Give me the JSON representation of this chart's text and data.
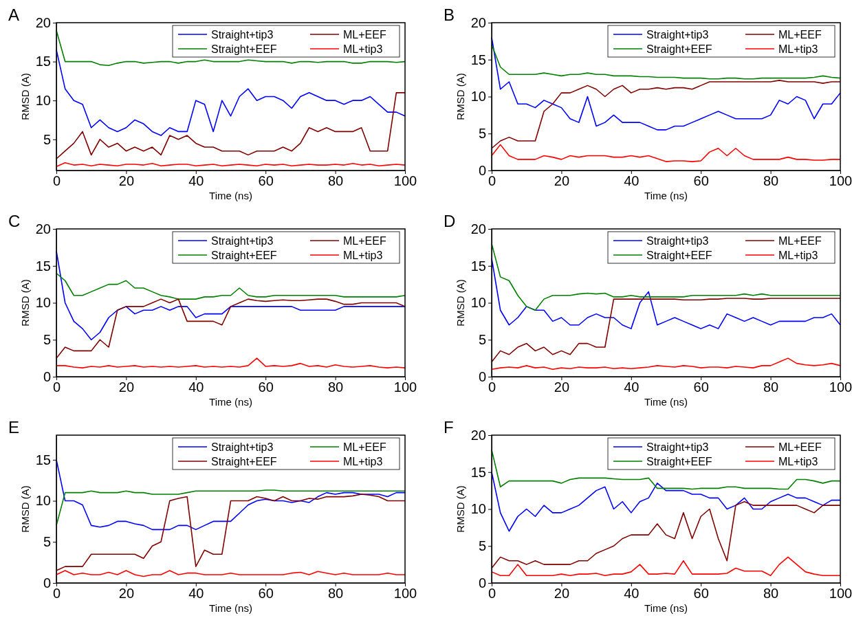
{
  "chart_data": [
    {
      "type": "line",
      "title": "A",
      "xlabel": "Time (ns)",
      "ylabel": "RMSD (A)",
      "xlim": [
        0,
        100
      ],
      "xticks": [
        0,
        20,
        40,
        60,
        80,
        100
      ],
      "ylim": [
        1,
        20
      ],
      "yticks": [
        5,
        10,
        15,
        20
      ],
      "legend": "top right",
      "x": [
        0,
        2.5,
        5,
        7.5,
        10,
        12.5,
        15,
        17.5,
        20,
        22.5,
        25,
        27.5,
        30,
        32.5,
        35,
        37.5,
        40,
        42.5,
        45,
        47.5,
        50,
        52.5,
        55,
        57.5,
        60,
        62.5,
        65,
        67.5,
        70,
        72.5,
        75,
        77.5,
        80,
        82.5,
        85,
        87.5,
        90,
        92.5,
        95,
        97.5,
        100
      ],
      "series": [
        {
          "name": "Straight+tip3",
          "color": "#0000ff",
          "values": [
            16.5,
            11.5,
            10,
            9.5,
            6.5,
            7.5,
            6.5,
            6,
            6.5,
            7.5,
            7,
            6,
            5.5,
            6.5,
            6,
            6,
            10,
            9.5,
            6,
            10,
            8,
            10.5,
            11.5,
            10,
            10.5,
            10.5,
            10,
            9,
            10.5,
            11,
            10.5,
            10,
            10,
            9.5,
            10,
            10,
            10.5,
            9.5,
            8.5,
            8.5,
            8
          ]
        },
        {
          "name": "Straight+EEF",
          "color": "#008000",
          "values": [
            19,
            15,
            15,
            15,
            15,
            14.6,
            14.5,
            14.8,
            15,
            15,
            14.8,
            14.9,
            15,
            15,
            14.8,
            15,
            15,
            15.2,
            15,
            15,
            15,
            15,
            15.2,
            15.1,
            15,
            15,
            15,
            14.8,
            15,
            15,
            14.9,
            15,
            15,
            15,
            14.8,
            14.8,
            15,
            15,
            15,
            14.9,
            15
          ]
        },
        {
          "name": "ML+EEF",
          "color": "#800000",
          "values": [
            2.5,
            3.5,
            4.5,
            6,
            3,
            5,
            4,
            4.5,
            3.5,
            4,
            3.5,
            4,
            3,
            5.5,
            5,
            5.5,
            4.5,
            4,
            4,
            3.5,
            3.5,
            3.5,
            3,
            3.5,
            3.5,
            3.5,
            4,
            3.5,
            4.5,
            6.5,
            6,
            6.5,
            6,
            6,
            6,
            6.5,
            3.5,
            3.5,
            3.5,
            11,
            11
          ]
        },
        {
          "name": "ML+tip3",
          "color": "#ff0000",
          "values": [
            1.5,
            2,
            1.7,
            1.8,
            1.6,
            1.8,
            1.7,
            1.6,
            1.8,
            1.8,
            1.7,
            1.9,
            1.6,
            1.7,
            1.8,
            1.8,
            1.6,
            1.7,
            1.8,
            1.6,
            1.7,
            1.8,
            1.7,
            1.6,
            1.8,
            1.7,
            1.8,
            1.6,
            1.7,
            1.8,
            1.7,
            1.7,
            1.8,
            1.7,
            1.9,
            1.7,
            1.8,
            1.6,
            1.7,
            1.8,
            1.7
          ]
        }
      ]
    },
    {
      "type": "line",
      "title": "B",
      "xlabel": "Time (ns)",
      "ylabel": "RMSD (A)",
      "xlim": [
        0,
        100
      ],
      "xticks": [
        0,
        20,
        40,
        60,
        80,
        100
      ],
      "ylim": [
        0,
        20
      ],
      "yticks": [
        0,
        5,
        10,
        15,
        20
      ],
      "legend": "top right",
      "x": [
        0,
        2.5,
        5,
        7.5,
        10,
        12.5,
        15,
        17.5,
        20,
        22.5,
        25,
        27.5,
        30,
        32.5,
        35,
        37.5,
        40,
        42.5,
        45,
        47.5,
        50,
        52.5,
        55,
        57.5,
        60,
        62.5,
        65,
        67.5,
        70,
        72.5,
        75,
        77.5,
        80,
        82.5,
        85,
        87.5,
        90,
        92.5,
        95,
        97.5,
        100
      ],
      "series": [
        {
          "name": "Straight+tip3",
          "color": "#0000ff",
          "values": [
            18,
            11,
            12,
            9,
            9,
            8.5,
            9.5,
            9,
            8.5,
            7,
            6.5,
            10,
            6,
            6.5,
            7.5,
            6.5,
            6.5,
            6.5,
            6,
            5.5,
            5.5,
            6,
            6,
            6.5,
            7,
            7.5,
            8,
            7.5,
            7,
            7,
            7,
            7,
            7.5,
            9.5,
            9,
            10,
            9.5,
            7,
            9,
            9,
            10.5
          ]
        },
        {
          "name": "Straight+EEF",
          "color": "#008000",
          "values": [
            17,
            14,
            13,
            13,
            13,
            13,
            13.2,
            13,
            12.8,
            13,
            13,
            13.2,
            13,
            13,
            12.8,
            12.8,
            12.8,
            12.7,
            12.7,
            12.6,
            12.6,
            12.6,
            12.5,
            12.5,
            12.5,
            12.4,
            12.4,
            12.5,
            12.5,
            12.4,
            12.4,
            12.5,
            12.5,
            12.5,
            12.5,
            12.5,
            12.5,
            12.6,
            12.8,
            12.6,
            12.5
          ]
        },
        {
          "name": "ML+EEF",
          "color": "#800000",
          "values": [
            3,
            4,
            4.5,
            4,
            4,
            4,
            8,
            9,
            10.5,
            10.5,
            11,
            11.5,
            11,
            10,
            11,
            11.5,
            10.5,
            11,
            11,
            11.2,
            11,
            11.2,
            11.2,
            11,
            11.5,
            12,
            12,
            12,
            12,
            12,
            12,
            12,
            12,
            12.2,
            12,
            12,
            12,
            12,
            11.8,
            12,
            12
          ]
        },
        {
          "name": "ML+tip3",
          "color": "#ff0000",
          "values": [
            2,
            3.5,
            2,
            1.5,
            1.5,
            1.5,
            2,
            1.8,
            1.5,
            2,
            1.8,
            2,
            2,
            2,
            1.8,
            1.8,
            2,
            1.8,
            2,
            1.6,
            1.2,
            1.3,
            1.3,
            1.2,
            1.3,
            2.5,
            3,
            2,
            3,
            2,
            1.5,
            1.5,
            1.5,
            1.5,
            1.8,
            1.5,
            1.5,
            1.4,
            1.4,
            1.5,
            1.5
          ]
        }
      ]
    },
    {
      "type": "line",
      "title": "C",
      "xlabel": "Time (ns)",
      "ylabel": "RMSD (A)",
      "xlim": [
        0,
        100
      ],
      "xticks": [
        0,
        20,
        40,
        60,
        80,
        100
      ],
      "ylim": [
        0,
        20
      ],
      "yticks": [
        0,
        5,
        10,
        15,
        20
      ],
      "legend": "top right",
      "x": [
        0,
        2.5,
        5,
        7.5,
        10,
        12.5,
        15,
        17.5,
        20,
        22.5,
        25,
        27.5,
        30,
        32.5,
        35,
        37.5,
        40,
        42.5,
        45,
        47.5,
        50,
        52.5,
        55,
        57.5,
        60,
        62.5,
        65,
        67.5,
        70,
        72.5,
        75,
        77.5,
        80,
        82.5,
        85,
        87.5,
        90,
        92.5,
        95,
        97.5,
        100
      ],
      "series": [
        {
          "name": "Straight+tip3",
          "color": "#0000ff",
          "values": [
            17,
            10,
            7.5,
            6.5,
            5,
            6,
            8,
            9,
            9.5,
            8.5,
            9,
            9,
            9.5,
            9,
            9.5,
            9.5,
            8,
            8.5,
            8.5,
            8.5,
            9.5,
            9.5,
            9.5,
            9.5,
            9.5,
            9.5,
            9.5,
            9.5,
            9,
            9,
            9,
            9,
            9,
            9.5,
            9.5,
            9.5,
            9.5,
            9.5,
            9.5,
            9.5,
            9.5
          ]
        },
        {
          "name": "Straight+EEF",
          "color": "#008000",
          "values": [
            14,
            13,
            11,
            11,
            11.5,
            12,
            12.5,
            12.5,
            13,
            12,
            12,
            11.5,
            11,
            10.8,
            10.5,
            10.5,
            10.5,
            10.8,
            10.8,
            11,
            11,
            12,
            11,
            10.8,
            10.8,
            11,
            11,
            11,
            11,
            11,
            11,
            11,
            11,
            10.8,
            10.8,
            10.8,
            10.8,
            10.8,
            10.8,
            10.8,
            11
          ]
        },
        {
          "name": "ML+EEF",
          "color": "#800000",
          "values": [
            2.5,
            4,
            3.5,
            3.5,
            3.5,
            5,
            4,
            9,
            9.5,
            9.5,
            9.5,
            10,
            10.5,
            10,
            10.5,
            7.5,
            7.5,
            7.5,
            7.5,
            7,
            9.5,
            10,
            10.5,
            10.3,
            10.2,
            10.3,
            10.4,
            10.3,
            10.3,
            10.4,
            10.5,
            10.5,
            10.2,
            9.8,
            9.8,
            10,
            10,
            10,
            10,
            10,
            9.5
          ]
        },
        {
          "name": "ML+tip3",
          "color": "#ff0000",
          "values": [
            1.5,
            1.5,
            1.3,
            1.2,
            1.4,
            1.3,
            1.5,
            1.3,
            1.4,
            1.5,
            1.3,
            1.4,
            1.3,
            1.4,
            1.3,
            1.4,
            1.5,
            1.3,
            1.4,
            1.3,
            1.4,
            1.3,
            1.5,
            2.5,
            1.4,
            1.5,
            1.4,
            1.5,
            1.8,
            1.4,
            1.5,
            1.3,
            1.6,
            1.4,
            1.3,
            1.4,
            1.5,
            1.3,
            1.2,
            1.3,
            1.2
          ]
        }
      ]
    },
    {
      "type": "line",
      "title": "D",
      "xlabel": "Time (ns)",
      "ylabel": "RMSD (A)",
      "xlim": [
        0,
        100
      ],
      "xticks": [
        0,
        20,
        40,
        60,
        80,
        100
      ],
      "ylim": [
        0,
        20
      ],
      "yticks": [
        0,
        5,
        10,
        15,
        20
      ],
      "legend": "top right",
      "x": [
        0,
        2.5,
        5,
        7.5,
        10,
        12.5,
        15,
        17.5,
        20,
        22.5,
        25,
        27.5,
        30,
        32.5,
        35,
        37.5,
        40,
        42.5,
        45,
        47.5,
        50,
        52.5,
        55,
        57.5,
        60,
        62.5,
        65,
        67.5,
        70,
        72.5,
        75,
        77.5,
        80,
        82.5,
        85,
        87.5,
        90,
        92.5,
        95,
        97.5,
        100
      ],
      "series": [
        {
          "name": "Straight+tip3",
          "color": "#0000ff",
          "values": [
            16,
            9,
            7,
            8,
            9.5,
            9,
            9,
            7.5,
            8,
            7,
            7,
            8,
            8.5,
            8,
            8,
            7,
            6.5,
            10,
            11.5,
            7,
            7.5,
            8,
            7.5,
            7,
            6.5,
            7,
            6.5,
            8.5,
            8,
            7.5,
            8,
            7.5,
            7,
            7.5,
            7.5,
            7.5,
            7.5,
            8,
            8,
            8.5,
            7
          ]
        },
        {
          "name": "Straight+EEF",
          "color": "#008000",
          "values": [
            18,
            13.5,
            13,
            11,
            9.5,
            9,
            10.5,
            11,
            11,
            11,
            11.2,
            11.3,
            11.2,
            11.3,
            10.8,
            10.8,
            11,
            10.8,
            10.8,
            10.8,
            10.8,
            10.8,
            10.8,
            11,
            11,
            11,
            11,
            11,
            11,
            11.2,
            11,
            11.2,
            11,
            11,
            11,
            11,
            11,
            11,
            11,
            11,
            11
          ]
        },
        {
          "name": "ML+EEF",
          "color": "#800000",
          "values": [
            2,
            3.5,
            3,
            4,
            4.5,
            3.5,
            4,
            3,
            3.5,
            3,
            4.5,
            4.5,
            4,
            4,
            10.5,
            10.5,
            10.5,
            10.5,
            10.5,
            10.5,
            10.5,
            10.5,
            10.4,
            10.4,
            10.4,
            10.5,
            10.5,
            10.6,
            10.6,
            10.6,
            10.5,
            10.5,
            10.6,
            10.6,
            10.6,
            10.6,
            10.6,
            10.6,
            10.6,
            10.6,
            10.6
          ]
        },
        {
          "name": "ML+tip3",
          "color": "#ff0000",
          "values": [
            1,
            1.2,
            1.3,
            1.2,
            1.5,
            1.2,
            1.3,
            1,
            1.2,
            1.1,
            1.3,
            1.2,
            1.2,
            1.3,
            1.1,
            1.2,
            1.1,
            1.2,
            1.3,
            1.5,
            1.4,
            1.3,
            1.5,
            1.4,
            1.2,
            1.3,
            1.3,
            1.2,
            1.4,
            1.3,
            1.2,
            1.5,
            1.5,
            2,
            2.5,
            1.8,
            1.6,
            1.5,
            1.6,
            1.8,
            1.5
          ]
        }
      ]
    },
    {
      "type": "line",
      "title": "E",
      "xlabel": "Time (ns)",
      "ylabel": "RMSD (A)",
      "xlim": [
        0,
        100
      ],
      "xticks": [
        0,
        20,
        40,
        60,
        80,
        100
      ],
      "ylim": [
        0,
        18
      ],
      "yticks": [
        0,
        5,
        10,
        15
      ],
      "legend": "top right",
      "x": [
        0,
        2.5,
        5,
        7.5,
        10,
        12.5,
        15,
        17.5,
        20,
        22.5,
        25,
        27.5,
        30,
        32.5,
        35,
        37.5,
        40,
        42.5,
        45,
        47.5,
        50,
        52.5,
        55,
        57.5,
        60,
        62.5,
        65,
        67.5,
        70,
        72.5,
        75,
        77.5,
        80,
        82.5,
        85,
        87.5,
        90,
        92.5,
        95,
        97.5,
        100
      ],
      "series": [
        {
          "name": "Straight+tip3",
          "color": "#0000ff",
          "values": [
            15,
            10,
            10,
            9.5,
            7,
            6.8,
            7,
            7.5,
            7.5,
            7.2,
            7,
            6.5,
            6.5,
            6.5,
            7,
            7,
            6.5,
            7,
            7.5,
            7.5,
            7.5,
            8.5,
            9.5,
            10,
            10.2,
            10,
            10,
            9.8,
            10,
            9.8,
            10.5,
            11,
            10.8,
            11,
            11,
            10.8,
            10.8,
            10.8,
            10.5,
            11,
            11
          ]
        },
        {
          "name": "Straight+EEF",
          "color": "#800000",
          "values": [
            1.5,
            2,
            2,
            2,
            3.5,
            3.5,
            3.5,
            3.5,
            3.5,
            3.5,
            3,
            4.5,
            5,
            10,
            10.3,
            10.5,
            2,
            4,
            3.5,
            3.5,
            10,
            10,
            10,
            10.5,
            10.3,
            10,
            10.5,
            10,
            10,
            10.3,
            10.2,
            10.5,
            10.5,
            10.5,
            10.6,
            10.8,
            10.7,
            10.5,
            10,
            10,
            10
          ]
        },
        {
          "name": "ML+EEF",
          "color": "#008000",
          "values": [
            7,
            11,
            11,
            11,
            11.2,
            11,
            11,
            11,
            11.2,
            11,
            11,
            10.8,
            10.8,
            10.8,
            10.8,
            11,
            11.2,
            11.2,
            11.2,
            11.2,
            11.2,
            11.2,
            11.2,
            11.2,
            11.3,
            11.3,
            11.2,
            11.2,
            11.2,
            11.2,
            11.2,
            11.2,
            11.2,
            11.2,
            11.2,
            11.2,
            11.2,
            11.2,
            11.2,
            11.2,
            11.2
          ]
        },
        {
          "name": "ML+tip3",
          "color": "#ff0000",
          "values": [
            1,
            1.5,
            1,
            1.2,
            1,
            1,
            1.3,
            1,
            1.5,
            1,
            0.8,
            1,
            1,
            1.5,
            1,
            1.2,
            1.2,
            1,
            1,
            1,
            1.2,
            1,
            1,
            1,
            1,
            1,
            1,
            1.2,
            1.3,
            1,
            1.4,
            1.2,
            1,
            1.2,
            1,
            1,
            1,
            1,
            1.2,
            1,
            1
          ]
        }
      ]
    },
    {
      "type": "line",
      "title": "F",
      "xlabel": "Time (ns)",
      "ylabel": "RMSD (A)",
      "xlim": [
        0,
        100
      ],
      "xticks": [
        0,
        20,
        40,
        60,
        80,
        100
      ],
      "ylim": [
        0,
        20
      ],
      "yticks": [
        0,
        5,
        10,
        15,
        20
      ],
      "legend": "top right",
      "x": [
        0,
        2.5,
        5,
        7.5,
        10,
        12.5,
        15,
        17.5,
        20,
        22.5,
        25,
        27.5,
        30,
        32.5,
        35,
        37.5,
        40,
        42.5,
        45,
        47.5,
        50,
        52.5,
        55,
        57.5,
        60,
        62.5,
        65,
        67.5,
        70,
        72.5,
        75,
        77.5,
        80,
        82.5,
        85,
        87.5,
        90,
        92.5,
        95,
        97.5,
        100
      ],
      "series": [
        {
          "name": "Straight+tip3",
          "color": "#0000ff",
          "values": [
            15,
            9.5,
            7,
            9,
            10,
            9,
            10.5,
            9.5,
            9.5,
            10,
            10.5,
            11.5,
            12.5,
            13,
            10,
            11,
            9.5,
            11,
            11.5,
            13.5,
            12.5,
            12.5,
            12.5,
            12,
            12,
            11.5,
            11.5,
            10,
            10.5,
            11.5,
            10,
            10,
            11,
            11.5,
            12,
            11.5,
            11.5,
            11,
            10.5,
            11.2,
            11.2
          ]
        },
        {
          "name": "Straight+EEF",
          "color": "#008000",
          "values": [
            18,
            13,
            13.8,
            13.8,
            13.8,
            13.8,
            13.8,
            13.8,
            13.5,
            14,
            14.2,
            14.2,
            14.2,
            14.2,
            14.1,
            14,
            14,
            14,
            14.2,
            12.8,
            12.8,
            12.8,
            12.8,
            12.7,
            12.8,
            12.8,
            12.8,
            13,
            13,
            12.8,
            12.8,
            12.8,
            12.8,
            12.7,
            12.7,
            14,
            14,
            13.8,
            13.5,
            13.8,
            13.8
          ]
        },
        {
          "name": "ML+EEF",
          "color": "#800000",
          "values": [
            2,
            3.5,
            3,
            3,
            2.5,
            3,
            2.5,
            2.5,
            2.5,
            2.5,
            3,
            3,
            4,
            4.5,
            5,
            6,
            6.5,
            6.5,
            6.5,
            8,
            6.5,
            6,
            9.5,
            6,
            9,
            10,
            6,
            3,
            10.5,
            11,
            10.5,
            10.5,
            10.5,
            10.5,
            10.5,
            10.5,
            10,
            9.5,
            10.5,
            10.5,
            10.5
          ]
        },
        {
          "name": "ML+tip3",
          "color": "#ff0000",
          "values": [
            1.5,
            1,
            1,
            2.5,
            1,
            1,
            1,
            1,
            1.2,
            1,
            1.2,
            1.2,
            1.3,
            1,
            1.2,
            1.2,
            1.5,
            2.5,
            1.2,
            1.2,
            1.3,
            1.2,
            3,
            1.2,
            1.2,
            1.2,
            1.2,
            1.3,
            2,
            1.6,
            1.6,
            1.6,
            1,
            2.5,
            3.5,
            2.5,
            1.5,
            1.2,
            1,
            1,
            1
          ]
        }
      ]
    }
  ]
}
